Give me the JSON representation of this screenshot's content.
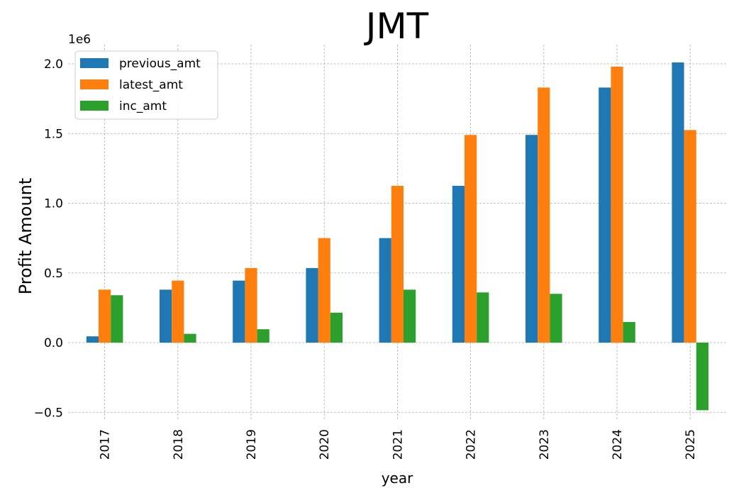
{
  "chart_data": {
    "type": "bar",
    "title": "JMT",
    "xlabel": "year",
    "ylabel": "Profit Amount",
    "y_offset_label": "1e6",
    "categories": [
      "2017",
      "2018",
      "2019",
      "2020",
      "2021",
      "2022",
      "2023",
      "2024",
      "2025"
    ],
    "series": [
      {
        "name": "previous_amt",
        "color": "#1f77b4",
        "values": [
          0.045,
          0.38,
          0.445,
          0.535,
          0.75,
          1.125,
          1.49,
          1.83,
          2.01
        ]
      },
      {
        "name": "latest_amt",
        "color": "#ff7f0e",
        "values": [
          0.38,
          0.445,
          0.535,
          0.75,
          1.125,
          1.49,
          1.83,
          1.98,
          1.525
        ]
      },
      {
        "name": "inc_amt",
        "color": "#2ca02c",
        "values": [
          0.34,
          0.063,
          0.096,
          0.215,
          0.38,
          0.36,
          0.35,
          0.148,
          -0.485
        ]
      }
    ],
    "ylim": [
      -0.56,
      2.12
    ],
    "yticks": [
      -0.5,
      0.0,
      0.5,
      1.0,
      1.5,
      2.0
    ],
    "ytick_labels": [
      "−0.5",
      "0.0",
      "0.5",
      "1.0",
      "1.5",
      "2.0"
    ],
    "grid": true,
    "legend_position": "top-left"
  }
}
